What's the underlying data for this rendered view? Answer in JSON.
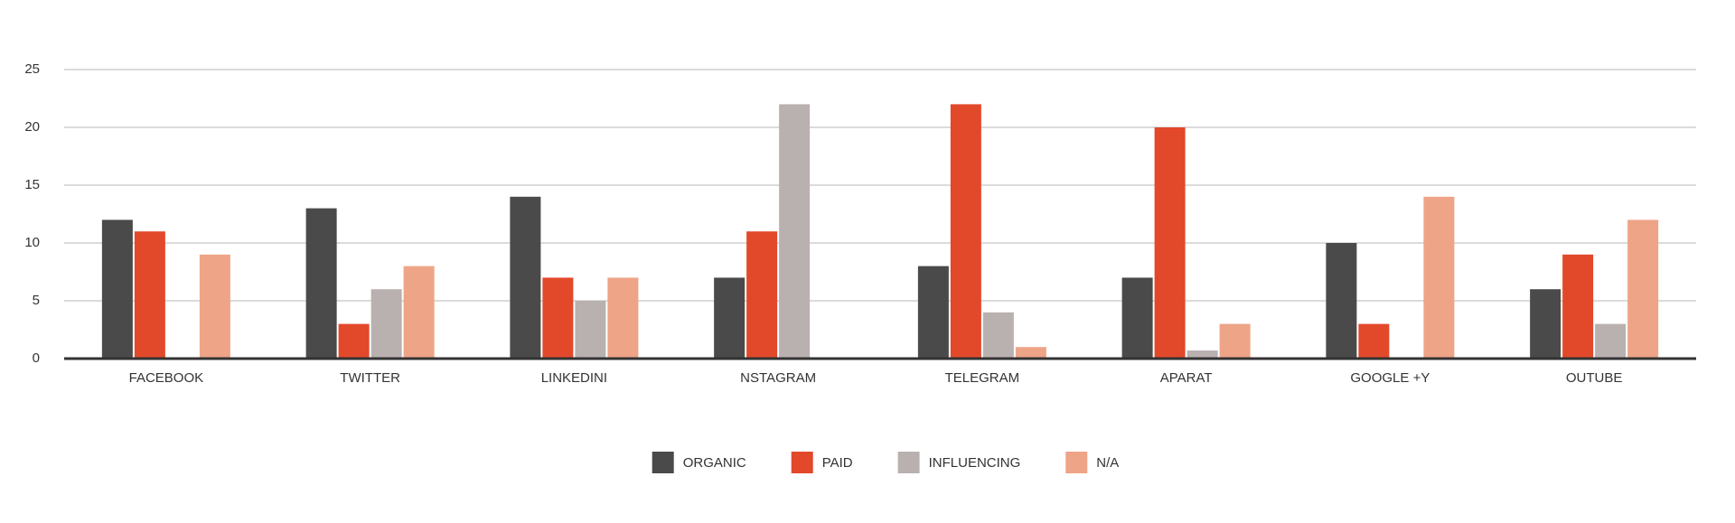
{
  "chart_data": {
    "type": "bar",
    "categories": [
      "FACEBOOK",
      "TWITTER",
      "LINKEDINI",
      "NSTAGRAM",
      "TELEGRAM",
      "APARAT",
      "GOOGLE +Y",
      "OUTUBE"
    ],
    "series": [
      {
        "name": "ORGANIC",
        "color": "#4a4a4a",
        "values": [
          12,
          13,
          14,
          7,
          8,
          7,
          10,
          6
        ]
      },
      {
        "name": "PAID",
        "color": "#e2492a",
        "values": [
          11,
          3,
          7,
          11,
          22,
          20,
          3,
          9
        ]
      },
      {
        "name": "INFLUENCING",
        "color": "#b9b1af",
        "values": [
          0,
          6,
          5,
          22,
          4,
          0.7,
          0,
          3
        ]
      },
      {
        "name": "N/A",
        "color": "#eea487",
        "values": [
          9,
          8,
          7,
          0,
          1,
          3,
          14,
          12
        ]
      }
    ],
    "ylim": [
      0,
      25
    ],
    "yticks": [
      0,
      5,
      10,
      15,
      20,
      25
    ],
    "grid": true,
    "legend": "bottom"
  }
}
